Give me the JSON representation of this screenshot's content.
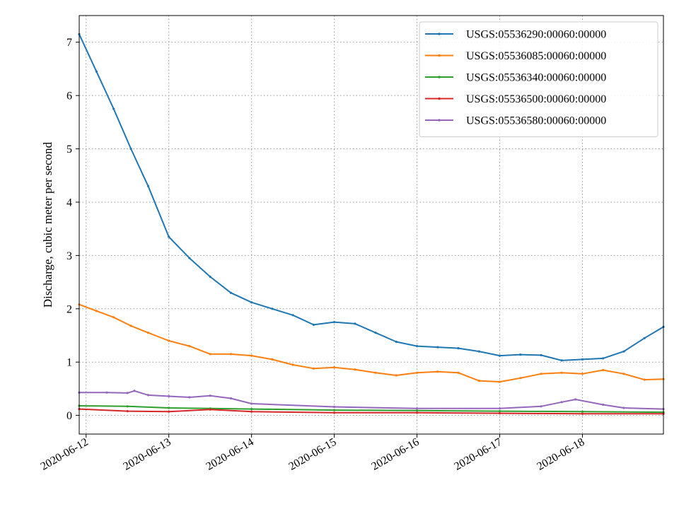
{
  "chart_data": {
    "type": "line",
    "ylabel": "Discharge, cubic meter per second",
    "xlabel": "",
    "title": "",
    "x_range": [
      "2020-06-11T22:00",
      "2020-06-18T23:30"
    ],
    "ylim": [
      -0.35,
      7.5
    ],
    "x_ticks": [
      "2020-06-12",
      "2020-06-13",
      "2020-06-14",
      "2020-06-15",
      "2020-06-16",
      "2020-06-17",
      "2020-06-18"
    ],
    "y_ticks": [
      "0",
      "1",
      "2",
      "3",
      "4",
      "5",
      "6",
      "7"
    ],
    "grid": true,
    "legend_position": "upper right",
    "series": [
      {
        "name": "USGS:05536290:00060:00000",
        "color": "#1f77b4",
        "x": [
          "2020-06-11T22:00",
          "2020-06-12T03:00",
          "2020-06-12T08:00",
          "2020-06-12T13:00",
          "2020-06-12T18:00",
          "2020-06-13T00:00",
          "2020-06-13T06:00",
          "2020-06-13T12:00",
          "2020-06-13T18:00",
          "2020-06-14T00:00",
          "2020-06-14T06:00",
          "2020-06-14T12:00",
          "2020-06-14T18:00",
          "2020-06-15T00:00",
          "2020-06-15T06:00",
          "2020-06-15T12:00",
          "2020-06-15T18:00",
          "2020-06-16T00:00",
          "2020-06-16T06:00",
          "2020-06-16T12:00",
          "2020-06-16T18:00",
          "2020-06-17T00:00",
          "2020-06-17T06:00",
          "2020-06-17T12:00",
          "2020-06-17T18:00",
          "2020-06-18T00:00",
          "2020-06-18T06:00",
          "2020-06-18T12:00",
          "2020-06-18T18:00",
          "2020-06-18T23:30"
        ],
        "values": [
          7.15,
          6.45,
          5.75,
          5.0,
          4.3,
          3.35,
          2.95,
          2.6,
          2.3,
          2.12,
          2.0,
          1.88,
          1.7,
          1.75,
          1.72,
          1.55,
          1.38,
          1.3,
          1.28,
          1.26,
          1.2,
          1.12,
          1.14,
          1.13,
          1.03,
          1.05,
          1.07,
          1.2,
          1.45,
          1.66
        ]
      },
      {
        "name": "USGS:05536085:00060:00000",
        "color": "#ff7f0e",
        "x": [
          "2020-06-11T22:00",
          "2020-06-12T03:00",
          "2020-06-12T08:00",
          "2020-06-12T13:00",
          "2020-06-12T18:00",
          "2020-06-13T00:00",
          "2020-06-13T06:00",
          "2020-06-13T12:00",
          "2020-06-13T18:00",
          "2020-06-14T00:00",
          "2020-06-14T06:00",
          "2020-06-14T12:00",
          "2020-06-14T18:00",
          "2020-06-15T00:00",
          "2020-06-15T06:00",
          "2020-06-15T12:00",
          "2020-06-15T18:00",
          "2020-06-16T00:00",
          "2020-06-16T06:00",
          "2020-06-16T12:00",
          "2020-06-16T18:00",
          "2020-06-17T00:00",
          "2020-06-17T06:00",
          "2020-06-17T12:00",
          "2020-06-17T18:00",
          "2020-06-18T00:00",
          "2020-06-18T06:00",
          "2020-06-18T12:00",
          "2020-06-18T18:00",
          "2020-06-18T23:30"
        ],
        "values": [
          2.08,
          1.96,
          1.84,
          1.68,
          1.55,
          1.4,
          1.3,
          1.15,
          1.15,
          1.12,
          1.05,
          0.95,
          0.88,
          0.9,
          0.86,
          0.8,
          0.75,
          0.8,
          0.82,
          0.8,
          0.65,
          0.63,
          0.7,
          0.78,
          0.8,
          0.78,
          0.85,
          0.78,
          0.67,
          0.68
        ]
      },
      {
        "name": "USGS:05536340:00060:00000",
        "color": "#2ca02c",
        "x": [
          "2020-06-11T22:00",
          "2020-06-12T12:00",
          "2020-06-13T00:00",
          "2020-06-13T12:00",
          "2020-06-14T00:00",
          "2020-06-15T00:00",
          "2020-06-16T00:00",
          "2020-06-17T00:00",
          "2020-06-18T00:00",
          "2020-06-18T23:30"
        ],
        "values": [
          0.18,
          0.17,
          0.14,
          0.13,
          0.12,
          0.1,
          0.09,
          0.08,
          0.07,
          0.06
        ]
      },
      {
        "name": "USGS:05536500:00060:00000",
        "color": "#d62728",
        "x": [
          "2020-06-11T22:00",
          "2020-06-12T12:00",
          "2020-06-13T00:00",
          "2020-06-13T12:00",
          "2020-06-14T00:00",
          "2020-06-15T00:00",
          "2020-06-16T00:00",
          "2020-06-17T00:00",
          "2020-06-18T00:00",
          "2020-06-18T23:30"
        ],
        "values": [
          0.12,
          0.08,
          0.07,
          0.11,
          0.07,
          0.05,
          0.05,
          0.04,
          0.03,
          0.03
        ]
      },
      {
        "name": "USGS:05536580:00060:00000",
        "color": "#9467bd",
        "x": [
          "2020-06-11T22:00",
          "2020-06-12T06:00",
          "2020-06-12T12:00",
          "2020-06-12T14:00",
          "2020-06-12T18:00",
          "2020-06-13T00:00",
          "2020-06-13T06:00",
          "2020-06-13T12:00",
          "2020-06-13T18:00",
          "2020-06-14T00:00",
          "2020-06-15T00:00",
          "2020-06-16T00:00",
          "2020-06-17T00:00",
          "2020-06-17T12:00",
          "2020-06-17T18:00",
          "2020-06-17T22:00",
          "2020-06-18T06:00",
          "2020-06-18T12:00",
          "2020-06-18T23:30"
        ],
        "values": [
          0.43,
          0.43,
          0.42,
          0.46,
          0.38,
          0.36,
          0.34,
          0.37,
          0.32,
          0.22,
          0.16,
          0.13,
          0.13,
          0.17,
          0.25,
          0.3,
          0.2,
          0.14,
          0.12
        ]
      }
    ]
  }
}
